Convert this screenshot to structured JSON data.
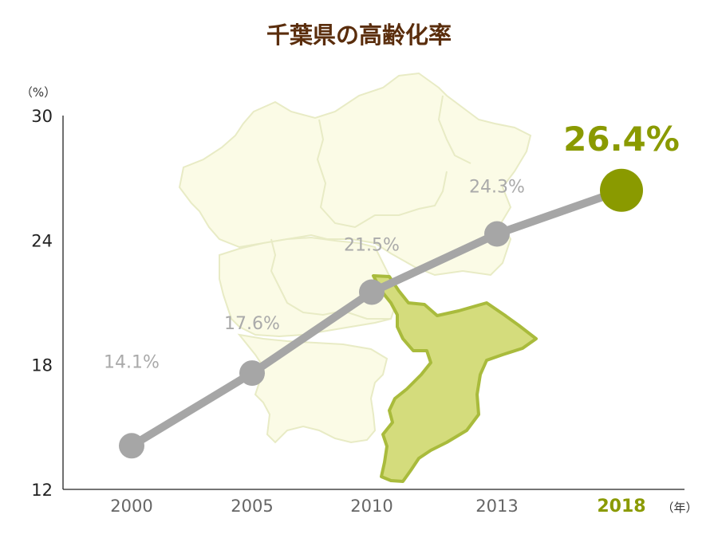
{
  "chart_data": {
    "type": "line",
    "title": "千葉県の高齢化率",
    "y_unit": "（%）",
    "x_unit": "（年）",
    "ylim": [
      12,
      30
    ],
    "yticks": [
      12,
      18,
      24,
      30
    ],
    "categories": [
      "2000",
      "2005",
      "2010",
      "2013",
      "2018"
    ],
    "values": [
      14.1,
      17.6,
      21.5,
      24.3,
      26.4
    ],
    "data_labels": [
      "14.1%",
      "17.6%",
      "21.5%",
      "24.3%",
      "26.4%"
    ],
    "highlight_index": 4,
    "colors": {
      "line": "#a6a6a6",
      "highlight": "#8a9a00",
      "title": "#5a2d0c",
      "map_fill": "#fbfbe6",
      "map_stroke": "#e8ebc5",
      "chiba_fill": "#d4dc7c",
      "chiba_stroke": "#a9bb3c"
    },
    "background_image": "kanto-region-map-with-chiba-highlighted"
  }
}
